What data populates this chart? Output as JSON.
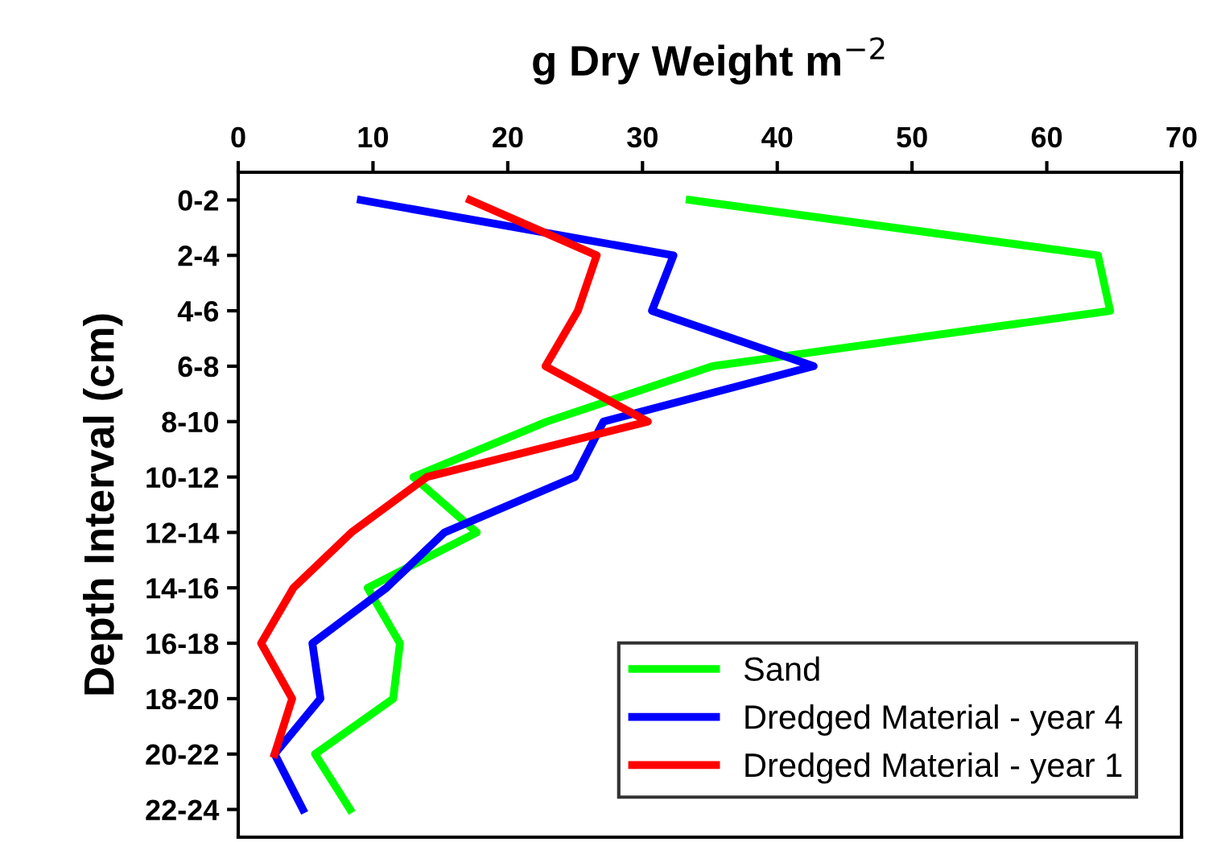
{
  "chart_data": {
    "type": "line",
    "title": "g Dry Weight m$^{−2}$",
    "ylabel": "Depth Interval (cm)",
    "categories": [
      "0-2",
      "2-4",
      "4-6",
      "6-8",
      "8-10",
      "10-12",
      "12-14",
      "14-16",
      "16-18",
      "18-20",
      "20-22",
      "22-24"
    ],
    "orientation": "horizontal",
    "xlim": [
      0,
      70
    ],
    "xticks": [
      0,
      10,
      20,
      30,
      40,
      50,
      60,
      70
    ],
    "series": [
      {
        "name": "Sand",
        "color": "#00ff00",
        "values": [
          33.5,
          63.8,
          64.7,
          35.2,
          22.9,
          13.0,
          17.7,
          9.6,
          12.0,
          11.5,
          5.7,
          8.3
        ]
      },
      {
        "name": "Dredged Material - year 4",
        "color": "#0000ff",
        "values": [
          9.1,
          32.3,
          30.7,
          42.7,
          27.1,
          25.0,
          15.3,
          11.0,
          5.5,
          6.1,
          2.7,
          4.8
        ]
      },
      {
        "name": "Dredged Material - year 1",
        "color": "#ff0000",
        "values": [
          17.2,
          26.6,
          25.2,
          22.8,
          30.4,
          14.0,
          8.4,
          4.1,
          1.7,
          4.0,
          2.7,
          null
        ]
      }
    ],
    "legend": "bottom right",
    "grid": false,
    "marker": "none",
    "line_style": "solid"
  }
}
